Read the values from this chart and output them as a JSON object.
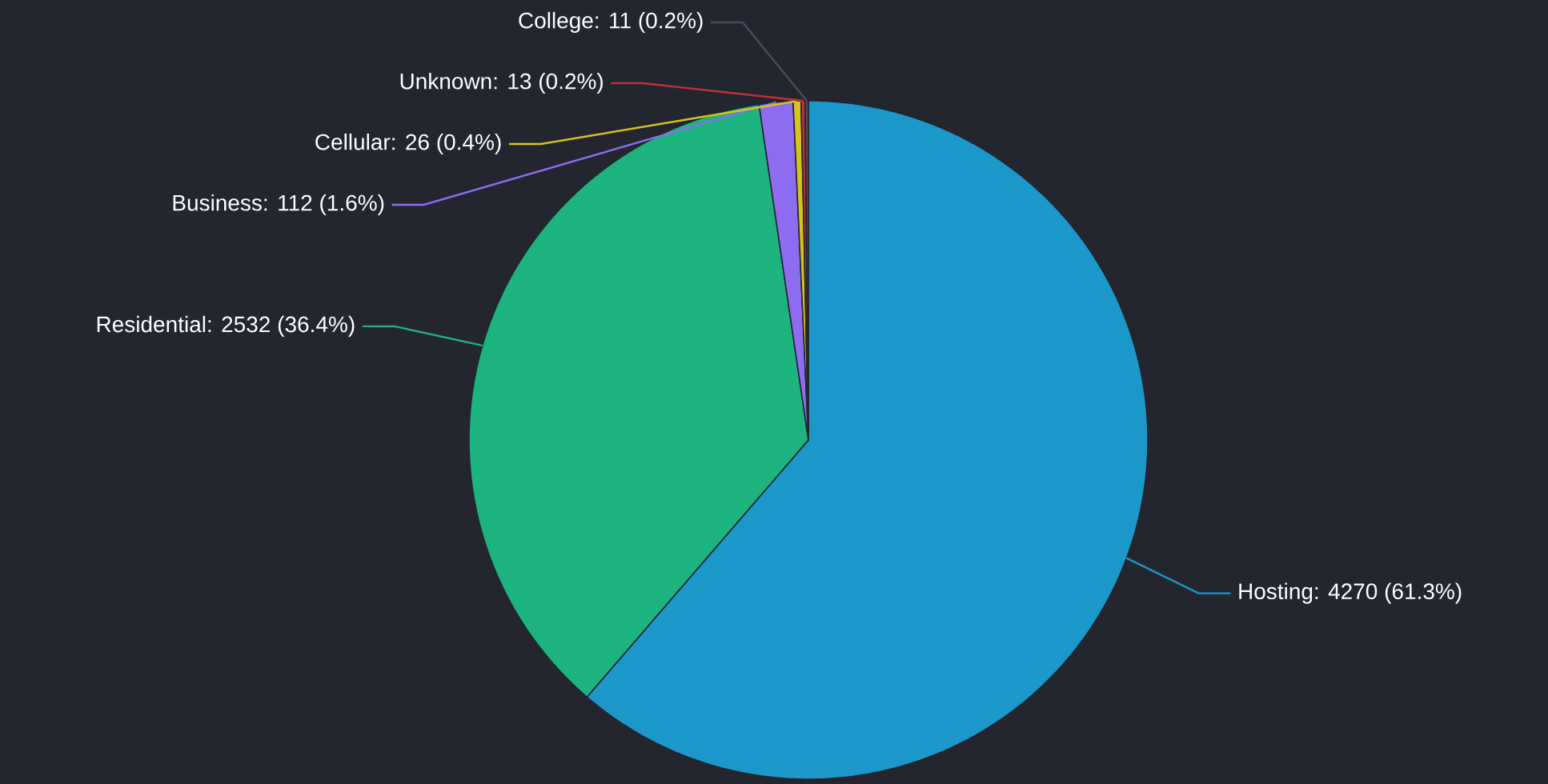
{
  "chart_data": {
    "type": "pie",
    "categories": [
      "Hosting: 4270 (61.3%)",
      "Residential: 2532 (36.4%)",
      "Business: 112 (1.6%)",
      "Cellular: 26 (0.4%)",
      "Unknown: 13 (0.2%)",
      "College: 11 (0.2%)"
    ],
    "values": [
      4270,
      2532,
      112,
      26,
      13,
      11
    ],
    "colors": [
      "#1b98c9",
      "#1db37e",
      "#8e6cf0",
      "#d6c31c",
      "#c0303a",
      "#4a4e5a"
    ]
  }
}
